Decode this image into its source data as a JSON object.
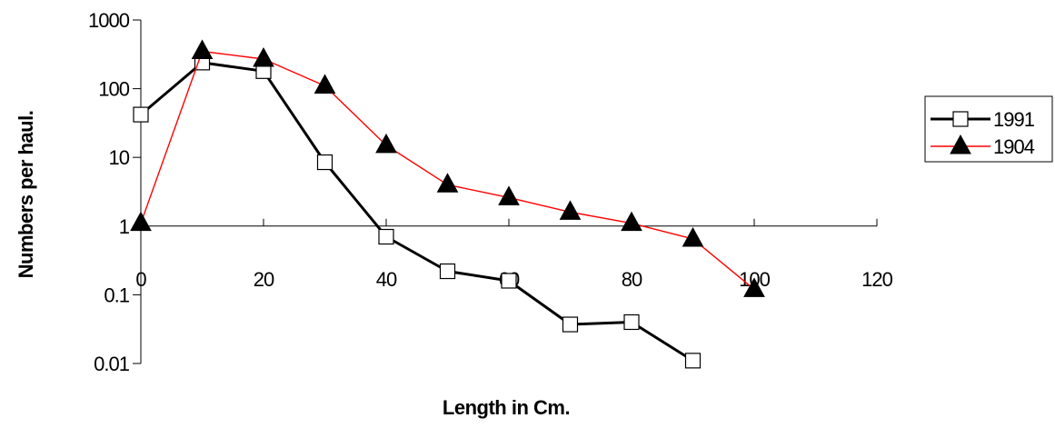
{
  "chart_data": {
    "type": "line",
    "xlabel": "Length in Cm.",
    "ylabel": "Numbers per haul.",
    "xlim": [
      0,
      120
    ],
    "ylim": [
      0.01,
      1000
    ],
    "y_scale": "log",
    "x_ticks": [
      "0",
      "20",
      "40",
      "60",
      "80",
      "100",
      "120"
    ],
    "y_ticks": [
      "0.01",
      "0.1",
      "1",
      "10",
      "100",
      "1000"
    ],
    "x_tick_values": [
      0,
      20,
      40,
      60,
      80,
      100,
      120
    ],
    "y_tick_values": [
      0.01,
      0.1,
      1,
      10,
      100,
      1000
    ],
    "x_axis_crosses_y_at": 1,
    "grid": false,
    "legend_position": "right",
    "series": [
      {
        "name": "1991",
        "color": "#000000",
        "marker": "open-square",
        "x": [
          0,
          10,
          20,
          30,
          40,
          50,
          60,
          70,
          80,
          90
        ],
        "y": [
          42,
          240,
          180,
          8.5,
          0.7,
          0.22,
          0.16,
          0.037,
          0.04,
          0.011
        ]
      },
      {
        "name": "1904",
        "color": "#ff0000",
        "marker": "filled-triangle",
        "x": [
          0,
          10,
          20,
          30,
          40,
          50,
          60,
          70,
          80,
          90,
          100
        ],
        "y": [
          1.1,
          350,
          270,
          110,
          15,
          4,
          2.6,
          1.6,
          1.1,
          0.65,
          0.12
        ]
      }
    ]
  }
}
